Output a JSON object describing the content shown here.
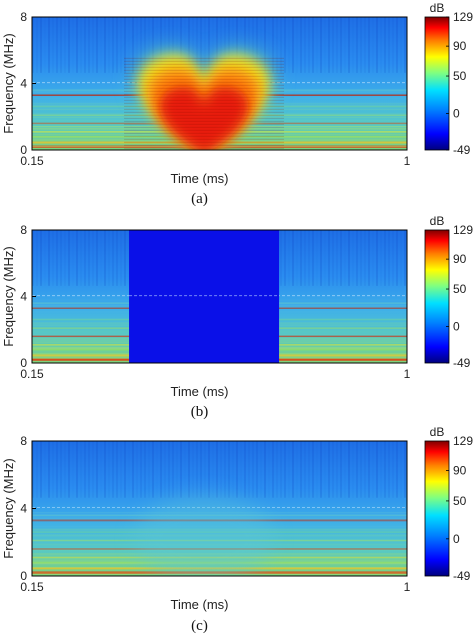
{
  "colorbar_stops": [
    "#00007f",
    "#0000ff",
    "#0080ff",
    "#00e0ff",
    "#80ff80",
    "#ffff00",
    "#ff8000",
    "#ff0000",
    "#7f0000"
  ],
  "chart_data": [
    {
      "type": "heatmap",
      "caption": "(a)",
      "xlabel": "Time (ms)",
      "ylabel": "Frequency (MHz)",
      "xlim": [
        0.15,
        1
      ],
      "ylim": [
        0,
        8
      ],
      "xticks": [
        "0.15",
        "1"
      ],
      "yticks": [
        "0",
        "4",
        "8"
      ],
      "colorbar": {
        "label": "dB",
        "ticks": [
          "129",
          "90",
          "50",
          "0",
          "-49"
        ],
        "range": [
          -49,
          129
        ]
      },
      "interference": {
        "shape": "heart-shaped high-intensity region",
        "time_range": [
          0.37,
          0.71
        ],
        "freq_range": [
          0,
          6
        ],
        "peak_db": 125
      }
    },
    {
      "type": "heatmap",
      "caption": "(b)",
      "xlabel": "Time (ms)",
      "ylabel": "Frequency (MHz)",
      "xlim": [
        0.15,
        1
      ],
      "ylim": [
        0,
        8
      ],
      "xticks": [
        "0.15",
        "1"
      ],
      "yticks": [
        "0",
        "4",
        "8"
      ],
      "colorbar": {
        "label": "dB",
        "ticks": [
          "129",
          "90",
          "50",
          "0",
          "-49"
        ],
        "range": [
          -49,
          129
        ]
      },
      "masked_region": {
        "time_range": [
          0.37,
          0.71
        ],
        "freq_range": [
          0,
          8
        ],
        "value_db": -49
      }
    },
    {
      "type": "heatmap",
      "caption": "(c)",
      "xlabel": "Time (ms)",
      "ylabel": "Frequency (MHz)",
      "xlim": [
        0.15,
        1
      ],
      "ylim": [
        0,
        8
      ],
      "xticks": [
        "0.15",
        "1"
      ],
      "yticks": [
        "0",
        "4",
        "8"
      ],
      "colorbar": {
        "label": "dB",
        "ticks": [
          "129",
          "90",
          "50",
          "0",
          "-49"
        ],
        "range": [
          -49,
          129
        ]
      }
    }
  ]
}
